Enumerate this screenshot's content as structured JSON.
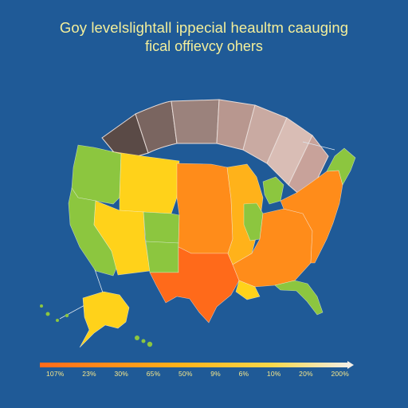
{
  "header": {
    "title": "Goy levelslightall ippecial heaultm caauging",
    "subtitle": "fical offievcy ohers"
  },
  "colors": {
    "background": "#1f5a97",
    "title_text": "#f4ef9b",
    "lime": "#8cc63f",
    "yellow": "#ffd21a",
    "light_orange": "#ffb21a",
    "orange": "#ff8c1a",
    "deep_orange": "#ff6a1a",
    "arc_dark": "#5a4a46",
    "arc_light": "#d9bdb5"
  },
  "scale": {
    "labels": [
      "107%",
      "23%",
      "30%",
      "65%",
      "50%",
      "9%",
      "6%",
      "10%",
      "20%",
      "200%"
    ]
  },
  "map": {
    "regions": [
      {
        "name": "pacific-northwest",
        "fill": "lime"
      },
      {
        "name": "california",
        "fill": "lime"
      },
      {
        "name": "mountain-north",
        "fill": "yellow"
      },
      {
        "name": "mountain-south",
        "fill": "yellow"
      },
      {
        "name": "colorado",
        "fill": "lime"
      },
      {
        "name": "new-mexico",
        "fill": "lime"
      },
      {
        "name": "plains",
        "fill": "orange"
      },
      {
        "name": "texas",
        "fill": "deep_orange"
      },
      {
        "name": "midwest",
        "fill": "light_orange"
      },
      {
        "name": "great-lakes",
        "fill": "lime"
      },
      {
        "name": "south",
        "fill": "orange"
      },
      {
        "name": "northeast",
        "fill": "orange"
      },
      {
        "name": "new-england",
        "fill": "lime"
      },
      {
        "name": "florida",
        "fill": "lime"
      },
      {
        "name": "alaska",
        "fill": "yellow"
      }
    ]
  }
}
